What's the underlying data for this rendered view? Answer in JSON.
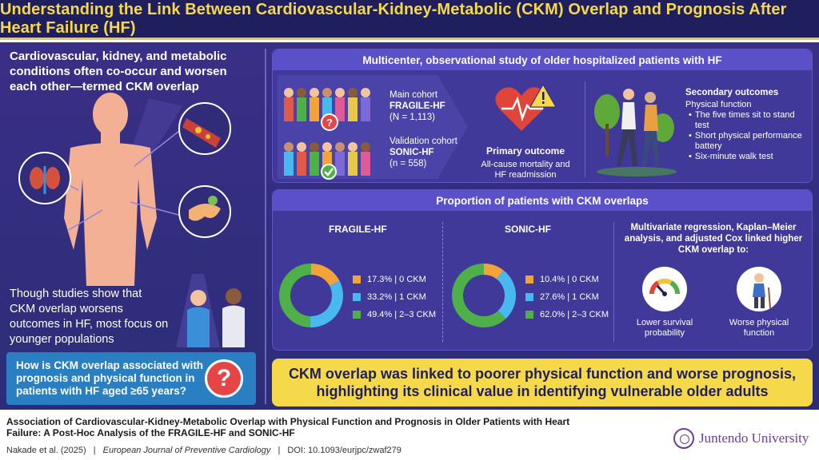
{
  "title": "Understanding the Link Between Cardiovascular-Kidney-Metabolic (CKM) Overlap and Prognosis After Heart Failure (HF)",
  "left": {
    "intro": "Cardiovascular, kidney, and metabolic conditions often co-occur and worsen each other—termed CKM overlap",
    "mid": "Though studies show that CKM overlap worsens outcomes in HF, most focus on younger populations",
    "question": "How is CKM overlap associated with prognosis and physical function in patients with HF aged ≥65 years?",
    "question_mark": "?"
  },
  "study": {
    "header": "Multicenter, observational study of older hospitalized patients with HF",
    "main_cohort": {
      "label": "Main cohort",
      "name": "FRAGILE-HF",
      "n": "(N = 1,113)"
    },
    "validation_cohort": {
      "label": "Validation cohort",
      "name": "SONIC-HF",
      "n": "(n = 558)"
    },
    "primary": {
      "title": "Primary outcome",
      "desc": "All-cause mortality and HF readmission"
    },
    "secondary": {
      "title": "Secondary outcomes",
      "subtitle": "Physical function",
      "items": [
        "The five times sit to stand test",
        "Short physical performance battery",
        "Six-minute walk test"
      ]
    }
  },
  "proportion": {
    "header": "Proportion of patients with CKM overlaps",
    "fragile": {
      "title": "FRAGILE-HF",
      "legend": [
        "17.3% | 0 CKM",
        "33.2% | 1 CKM",
        "49.4% | 2–3 CKM"
      ]
    },
    "sonic": {
      "title": "SONIC-HF",
      "legend": [
        "10.4% | 0 CKM",
        "27.6% | 1 CKM",
        "62.0% | 2–3 CKM"
      ]
    },
    "result_header": "Multivariate regression, Kaplan–Meier analysis, and adjusted Cox linked higher CKM overlap to:",
    "result1": "Lower survival probability",
    "result2": "Worse physical function"
  },
  "chart_data": [
    {
      "type": "pie",
      "title": "FRAGILE-HF",
      "categories": [
        "0 CKM",
        "1 CKM",
        "2–3 CKM"
      ],
      "values": [
        17.3,
        33.2,
        49.4
      ],
      "colors": [
        "#f2a33a",
        "#49b8ef",
        "#4fb04a"
      ]
    },
    {
      "type": "pie",
      "title": "SONIC-HF",
      "categories": [
        "0 CKM",
        "1 CKM",
        "2–3 CKM"
      ],
      "values": [
        10.4,
        27.6,
        62.0
      ],
      "colors": [
        "#f2a33a",
        "#49b8ef",
        "#4fb04a"
      ]
    }
  ],
  "banner": {
    "line1": "CKM overlap was linked to poorer physical function and worse prognosis,",
    "line2": "highlighting its clinical value in identifying vulnerable older adults"
  },
  "footer": {
    "title": "Association of Cardiovascular-Kidney-Metabolic Overlap with Physical Function and Prognosis in Older Patients with Heart Failure: A Post-Hoc Analysis of the FRAGILE-HF and SONIC-HF",
    "authors": "Nakade et al. (2025)",
    "journal": "European Journal of Preventive Cardiology",
    "doi": "DOI: 10.1093/eurjpc/zwaf279",
    "university": "Juntendo University"
  }
}
